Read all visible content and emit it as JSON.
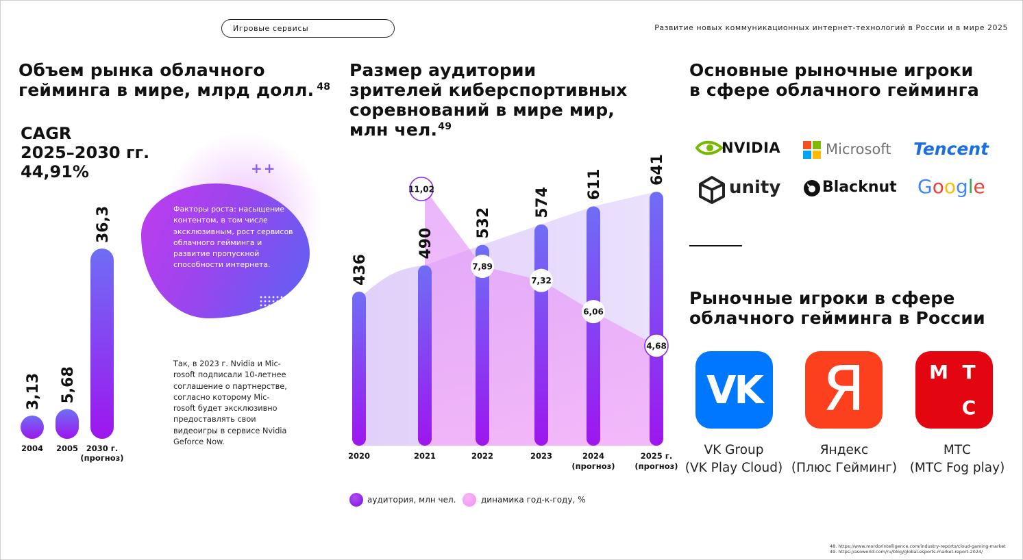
{
  "header": {
    "section": "Игровые сервисы",
    "document_title": "Развитие новых коммуникационных интернет-технологий в России и в мире 2025"
  },
  "left": {
    "title_lines": [
      "Объем рынка облачного",
      "гейминга в мире, млрд долл."
    ],
    "title_ref": "48",
    "cagr_lines": [
      "CAGR",
      "2025–2030 гг.",
      "44,91%"
    ],
    "blob_text": "Факторы роста: насыщение контентом, в том числе эксклюзивным, рост сервисов облачного гейминга и развитие пропускной способности интернета.",
    "note_lines": [
      "Так, в 2023 г. Nvidia и Mic-",
      "rosoft подписали 10-летнее",
      "соглашение о партнерстве,",
      "согласно которому Mic-",
      "rosoft будет эксклюзивно",
      "предоставлять свои",
      "видеоигры в сервисе Nvidia",
      "Geforce Now."
    ],
    "plus_sign": "++"
  },
  "middle": {
    "title_lines": [
      "Размер аудитории",
      "зрителей киберспортивных",
      "соревнований в мире мир,",
      "млн чел."
    ],
    "title_ref": "49",
    "legend": [
      {
        "label": "аудитория, млн чел.",
        "color": "#8a2be2"
      },
      {
        "label": "динамика год-к-году, %",
        "color": "#f09cf7"
      }
    ]
  },
  "right": {
    "global_title_lines": [
      "Основные рыночные игроки",
      "в сфере облачного гейминга"
    ],
    "global_logos": [
      {
        "name": "NVIDIA",
        "icon": "nvidia-eye-icon"
      },
      {
        "name": "Microsoft",
        "icon": "windows-squares-icon"
      },
      {
        "name": "Tencent",
        "icon": "tencent-wordmark"
      },
      {
        "name": "unity",
        "icon": "unity-cube-icon"
      },
      {
        "name": "Blacknut",
        "icon": "blacknut-icon"
      },
      {
        "name": "Google",
        "icon": "google-wordmark"
      }
    ],
    "russia_title_lines": [
      "Рыночные игроки в сфере",
      "облачного гейминга в России"
    ],
    "russia_players": [
      {
        "tile_text": "VK",
        "caption_lines": [
          "VK Group",
          "(VK Play Cloud)"
        ],
        "color": "#0077ff"
      },
      {
        "tile_text": "Я",
        "caption_lines": [
          "Яндекс",
          "(Плюс Гейминг)"
        ],
        "color": "#fc3f1d"
      },
      {
        "tile_text": "МТС",
        "caption_lines": [
          "МТС",
          "(МТС Fog play)"
        ],
        "color": "#e30611"
      }
    ]
  },
  "footnotes": [
    "48. https://www.mordorintelligence.com/industry-reports/cloud-gaming-market",
    "49. https://asoworld.com/ru/blog/global-esports-market-report-2024/"
  ],
  "chart_data": [
    {
      "type": "bar",
      "categories": [
        "2004",
        "2005",
        "2030 г. (прогноз)"
      ],
      "category_lines": [
        [
          "2004"
        ],
        [
          "2005"
        ],
        [
          "2030 г.",
          "(прогноз)"
        ]
      ],
      "values": [
        3.13,
        5.68,
        36.3
      ],
      "value_labels": [
        "3,13",
        "5,68",
        "36,3"
      ],
      "ylim": [
        0,
        36.3
      ]
    },
    {
      "type": "bar",
      "categories": [
        "2020",
        "2021",
        "2022",
        "2023",
        "2024 (прогноз)",
        "2025 г. (прогноз)"
      ],
      "category_lines": [
        [
          "2020"
        ],
        [
          "2021"
        ],
        [
          "2022"
        ],
        [
          "2023"
        ],
        [
          "2024",
          "(прогноз)"
        ],
        [
          "2025 г.",
          "(прогноз)"
        ]
      ],
      "series": [
        {
          "name": "аудитория, млн чел.",
          "type": "bar",
          "values": [
            436,
            490,
            532,
            574,
            611,
            641
          ],
          "value_labels": [
            "436",
            "490",
            "532",
            "574",
            "611",
            "641"
          ]
        },
        {
          "name": "динамика год-к-году, %",
          "type": "area",
          "x": [
            "2021",
            "2022",
            "2023",
            "2024 (прогноз)",
            "2025 г. (прогноз)"
          ],
          "values": [
            11.02,
            7.89,
            7.32,
            6.06,
            4.68
          ],
          "value_labels": [
            "11,02",
            "7,89",
            "7,32",
            "6,06",
            "4,68"
          ]
        }
      ],
      "ylim": [
        0,
        641
      ]
    }
  ]
}
